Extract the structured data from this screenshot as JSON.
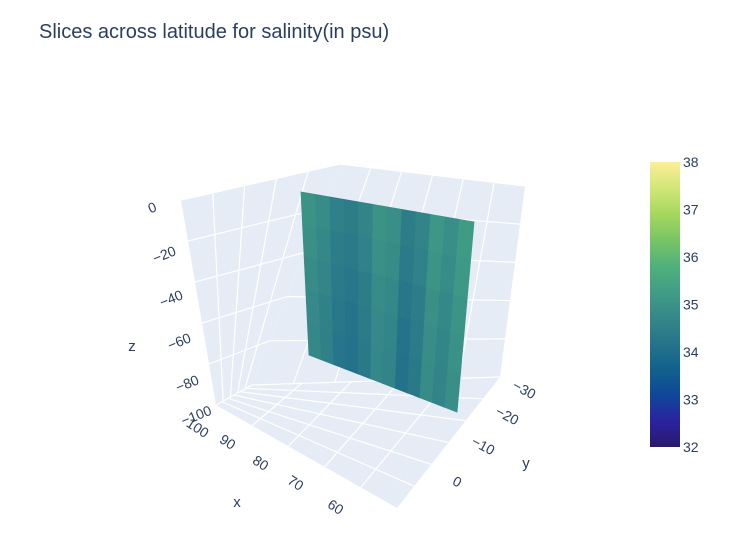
{
  "chart_data": {
    "type": "heatmap",
    "subtype": "3d-volume-slice",
    "title": "Slices across latitude for salinity(in psu)",
    "axes": {
      "x": {
        "label": "x",
        "ticks": [
          "100",
          "90",
          "80",
          "70",
          "60"
        ]
      },
      "y": {
        "label": "y",
        "ticks": [
          "−30",
          "−20",
          "−10",
          "0"
        ]
      },
      "z": {
        "label": "z",
        "ticks": [
          "0",
          "−20",
          "−40",
          "−60",
          "−80",
          "−100"
        ]
      }
    },
    "colorbar": {
      "colorscale": "haline",
      "range": [
        32,
        38
      ],
      "ticks": [
        "32",
        "33",
        "34",
        "35",
        "36",
        "37",
        "38"
      ],
      "colors": [
        "#29186b",
        "#2a23a0",
        "#0f4799",
        "#12618d",
        "#26748a",
        "#358888",
        "#419d85",
        "#51b17b",
        "#78c565",
        "#a6d85e",
        "#d1e677",
        "#fdee99"
      ]
    },
    "slice": {
      "orientation": "constant-x",
      "approx_salinity_range": [
        33.9,
        35.3
      ],
      "columns_along_y": [
        34.9,
        34.7,
        34.4,
        34.3,
        34.5,
        34.9,
        34.8,
        34.3,
        34.5,
        35.0,
        34.8,
        35.1
      ],
      "depth_variation": [
        0.12,
        0.04,
        -0.06,
        -0.14,
        -0.18
      ]
    },
    "scene_background": "#e5ecf6",
    "gridline_color": "#ffffff"
  }
}
